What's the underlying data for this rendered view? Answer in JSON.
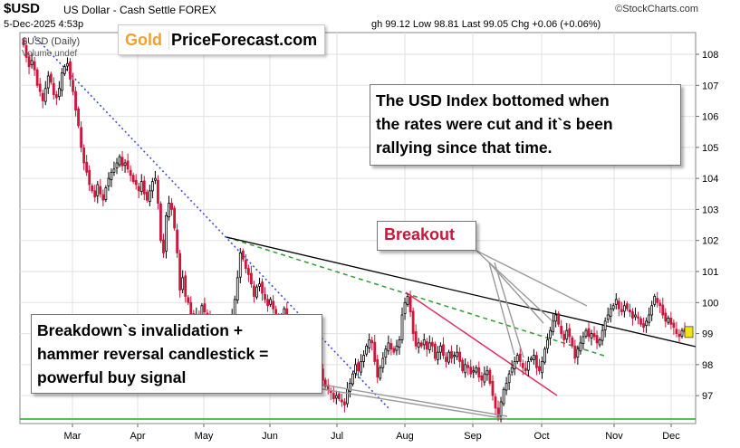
{
  "header": {
    "symbol": "$USD",
    "name": "US Dollar - Cash Settle FOREX",
    "watermark": "©StockCharts.com",
    "date": "5-Dec-2025 4:53p",
    "ohlc": "gh 99.12  Low 98.81  Last 99.05  Chg +0.06 (+0.06%)",
    "series_label": "$USD (Daily)",
    "volume_label": "Volume undef",
    "logo_gold": "Gold",
    "logo_site": "PriceForecast.com"
  },
  "annotations": {
    "rates_lines": [
      "The USD Index bottomed when",
      "the rates were cut and it`s been",
      "rallying since that time."
    ],
    "breakdown_lines": [
      "Breakdown`s invalidation +",
      "hammer reversal candlestick =",
      "powerful buy signal"
    ],
    "breakout": "Breakout"
  },
  "colors": {
    "up_candle": "#000000",
    "down_candle": "#d0143a",
    "resistance_line": "#000000",
    "downtrend_dotted": "#3b4fe0",
    "dashed_support": "#2e9e2e",
    "breakout_line": "#e03060",
    "horizontal_support": "#22aa22",
    "pointer_lines": "#999999"
  },
  "chart_data": {
    "type": "candlestick",
    "ylim": [
      96.1,
      108.7
    ],
    "yticks": [
      97,
      98,
      99,
      100,
      101,
      102,
      103,
      104,
      105,
      106,
      107,
      108
    ],
    "xlabels": [
      "Mar",
      "Apr",
      "May",
      "Jun",
      "Jul",
      "Aug",
      "Sep",
      "Oct",
      "Nov",
      "Dec"
    ],
    "last_value": 99.05,
    "grid": true,
    "closes": [
      108.3,
      107.9,
      107.6,
      107.8,
      107.5,
      107.0,
      106.8,
      106.5,
      106.9,
      107.3,
      107.1,
      106.7,
      106.6,
      106.9,
      107.4,
      107.6,
      107.7,
      107.2,
      106.8,
      106.2,
      105.7,
      105.0,
      104.5,
      104.2,
      103.8,
      103.6,
      103.4,
      103.8,
      103.5,
      103.3,
      103.7,
      104.0,
      104.2,
      104.3,
      104.5,
      104.7,
      104.4,
      104.5,
      104.3,
      104.1,
      103.9,
      103.8,
      103.6,
      103.9,
      103.5,
      103.3,
      103.6,
      103.9,
      104.0,
      103.2,
      102.0,
      101.6,
      102.8,
      103.2,
      103.0,
      102.4,
      101.6,
      100.4,
      100.8,
      100.2,
      100.0,
      99.6,
      99.3,
      99.6,
      99.5,
      99.9,
      99.7,
      99.5,
      99.4,
      99.1,
      99.3,
      99.1,
      99.3,
      99.0,
      99.2,
      99.4,
      99.6,
      100.1,
      100.8,
      101.6,
      101.4,
      101.1,
      100.9,
      100.6,
      100.2,
      100.5,
      100.6,
      100.3,
      100.1,
      99.9,
      100.1,
      99.8,
      99.4,
      99.2,
      99.5,
      99.8,
      99.3,
      99.0,
      98.8,
      98.6,
      98.3,
      98.5,
      98.1,
      97.8,
      97.6,
      97.4,
      97.6,
      97.8,
      97.9,
      97.5,
      97.3,
      97.2,
      97.1,
      96.9,
      97.0,
      96.9,
      96.8,
      96.7,
      97.2,
      97.4,
      97.7,
      98.0,
      97.8,
      98.1,
      98.3,
      98.6,
      98.8,
      98.7,
      98.1,
      97.6,
      97.9,
      98.2,
      98.5,
      98.7,
      98.5,
      98.4,
      98.6,
      98.8,
      99.6,
      100.0,
      100.2,
      99.7,
      99.0,
      98.6,
      98.7,
      98.6,
      98.8,
      98.5,
      98.7,
      98.6,
      98.2,
      98.4,
      98.6,
      98.3,
      98.1,
      98.4,
      98.2,
      98.3,
      98.4,
      98.1,
      97.8,
      98.0,
      97.9,
      97.7,
      97.8,
      97.9,
      97.6,
      97.5,
      97.7,
      97.8,
      97.4,
      97.0,
      96.6,
      96.3,
      96.8,
      97.2,
      97.4,
      97.7,
      97.9,
      98.1,
      98.3,
      98.1,
      97.9,
      97.8,
      98.1,
      98.2,
      98.3,
      97.9,
      97.8,
      98.1,
      98.5,
      98.8,
      99.1,
      99.4,
      99.6,
      99.3,
      99.0,
      98.8,
      99.1,
      98.9,
      98.6,
      98.2,
      98.5,
      98.7,
      98.9,
      99.1,
      98.9,
      99.0,
      98.9,
      98.7,
      98.8,
      99.1,
      99.4,
      99.6,
      99.8,
      99.9,
      100.1,
      99.8,
      99.7,
      99.9,
      99.8,
      99.7,
      99.5,
      99.6,
      99.5,
      99.3,
      99.2,
      99.4,
      99.6,
      99.9,
      100.2,
      100.0,
      99.9,
      99.6,
      99.4,
      99.5,
      99.3,
      99.2,
      99.0,
      98.9,
      99.1,
      99.05
    ]
  }
}
